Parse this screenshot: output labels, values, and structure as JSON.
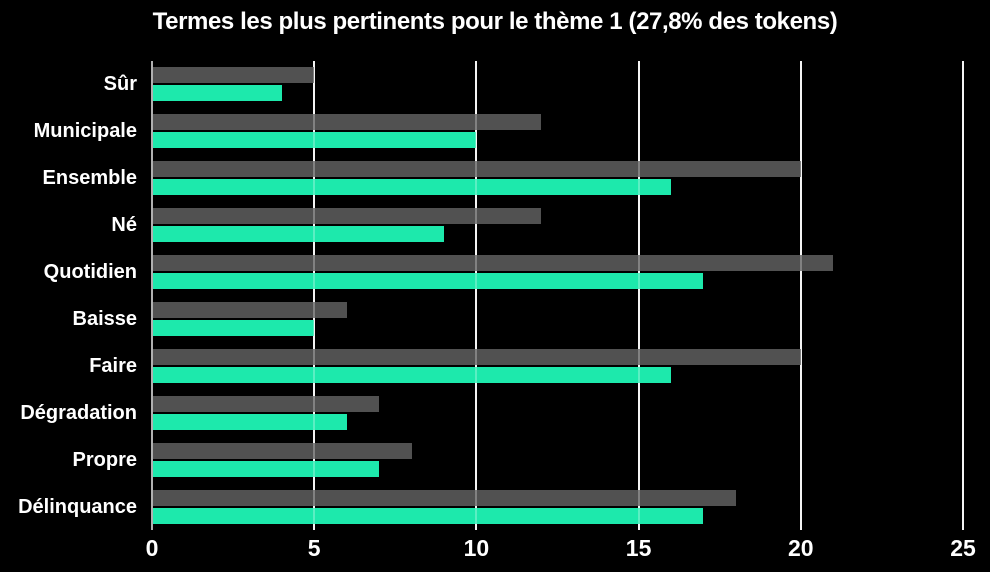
{
  "window": {
    "background": "#000000",
    "text_color": "#ffffff"
  },
  "chart_data": {
    "type": "bar",
    "orientation": "horizontal",
    "title": "Termes les plus pertinents pour le thème 1 (27,8% des tokens)",
    "categories": [
      "Sûr",
      "Municipale",
      "Ensemble",
      "Né",
      "Quotidien",
      "Baisse",
      "Faire",
      "Dégradation",
      "Propre",
      "Délinquance"
    ],
    "series": [
      {
        "name": "gray",
        "color": "#515151",
        "values": [
          5,
          12,
          20,
          12,
          21,
          6,
          20,
          7,
          8,
          18
        ]
      },
      {
        "name": "teal",
        "color": "#1de9ac",
        "values": [
          4,
          10,
          16,
          9,
          17,
          5,
          16,
          6,
          7,
          17
        ]
      }
    ],
    "xticks": [
      0,
      5,
      10,
      15,
      20,
      25
    ],
    "xlim": [
      0,
      25
    ],
    "xlabel": "",
    "ylabel": "",
    "grid": true,
    "legend": "none",
    "gridline_color": "#f0f0f0",
    "axisline_color": "#b0b0b0"
  }
}
